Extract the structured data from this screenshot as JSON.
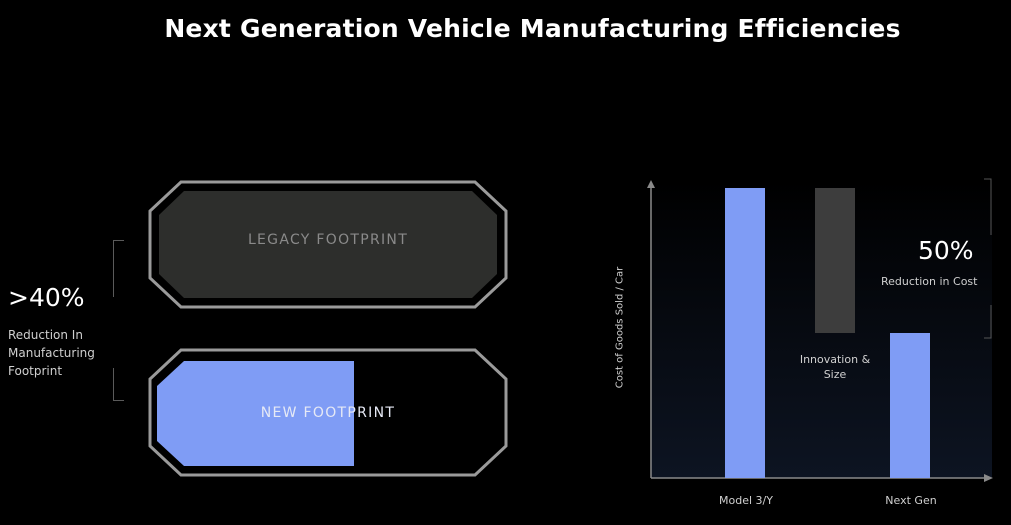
{
  "slide": {
    "title": "Next Generation Vehicle Manufacturing Efficiencies"
  },
  "footprint": {
    "stat_value": ">40%",
    "stat_line1": "Reduction In",
    "stat_line2": "Manufacturing",
    "stat_line3": "Footprint",
    "legacy_label": "LEGACY FOOTPRINT",
    "new_label": "NEW FOOTPRINT",
    "new_fill_fraction": 0.58,
    "legacy_fill_color": "#2d2e2c",
    "new_fill_color": "#7f9cf5"
  },
  "chart_data": {
    "type": "bar",
    "categories": [
      "Model 3/Y",
      "Next Gen"
    ],
    "ylabel": "Cost of Goods Sold / Car",
    "xlabel": "",
    "values": [
      1.0,
      0.5
    ],
    "bar_color": "#7f9cf5",
    "delta": {
      "label_line1": "Innovation &",
      "label_line2": "Size",
      "from": 1.0,
      "to": 0.5,
      "color": "#3d3d3d"
    },
    "annotation": {
      "value": "50%",
      "text": "Reduction in Cost"
    },
    "grid": false,
    "legend": "none"
  }
}
